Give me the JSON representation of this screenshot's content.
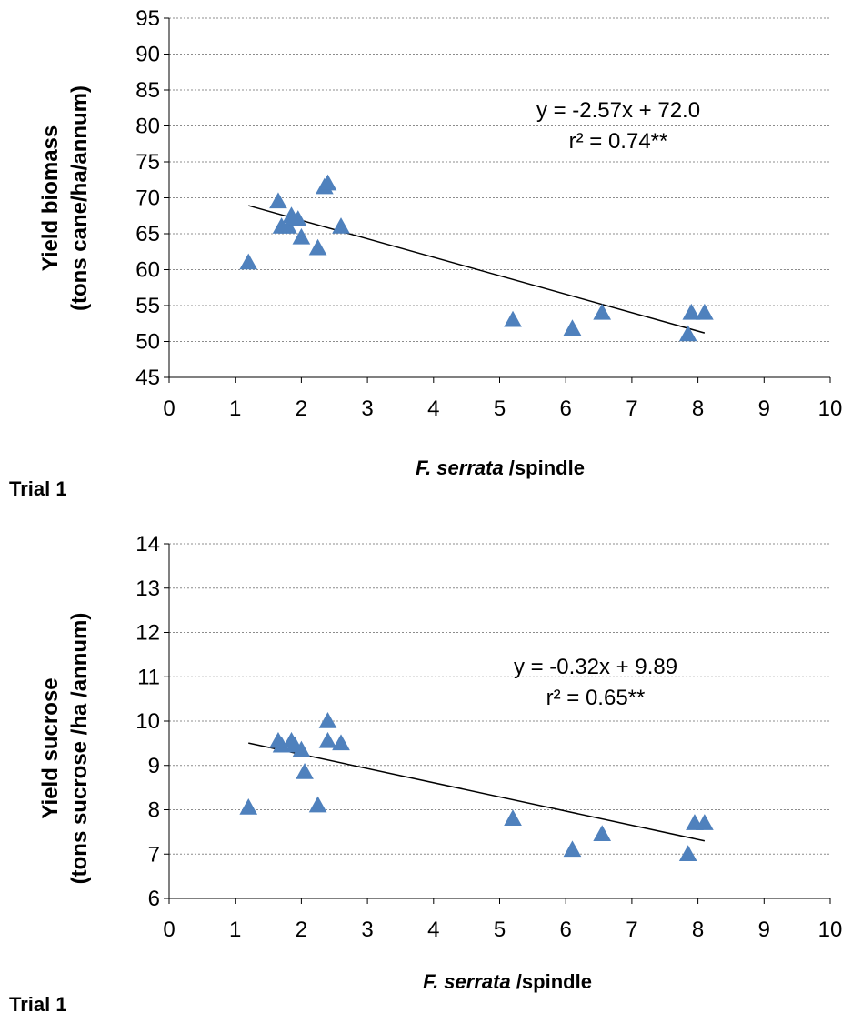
{
  "colors": {
    "marker": "#4F81BD",
    "grid": "#8c8c8c",
    "axis": "#000000",
    "trendline": "#000000"
  },
  "chart_data": [
    {
      "type": "scatter",
      "marker": "triangle",
      "panel_label": "Trial 1",
      "xlabel_italic": "F. serrata",
      "xlabel_rest": " /spindle",
      "ylabel_line1": "Yield biomass",
      "ylabel_line2": "(tons cane/ha/annum)",
      "xlim": [
        0,
        10
      ],
      "ylim": [
        45,
        95
      ],
      "x_ticks": [
        0,
        1,
        2,
        3,
        4,
        5,
        6,
        7,
        8,
        9,
        10
      ],
      "y_ticks": [
        45,
        50,
        55,
        60,
        65,
        70,
        75,
        80,
        85,
        90,
        95
      ],
      "grid": "horizontal dashed",
      "equation": "y = -2.57x + 72.0",
      "r2": "r² = 0.74**",
      "trendline": {
        "slope": -2.57,
        "intercept": 72.0,
        "x_range": [
          1.2,
          8.1
        ]
      },
      "points": [
        {
          "x": 1.2,
          "y": 61
        },
        {
          "x": 1.65,
          "y": 69.5
        },
        {
          "x": 1.7,
          "y": 66
        },
        {
          "x": 1.8,
          "y": 66
        },
        {
          "x": 1.85,
          "y": 67.5
        },
        {
          "x": 1.95,
          "y": 67
        },
        {
          "x": 2.0,
          "y": 64.5
        },
        {
          "x": 2.25,
          "y": 63
        },
        {
          "x": 2.35,
          "y": 71.5
        },
        {
          "x": 2.4,
          "y": 72
        },
        {
          "x": 2.6,
          "y": 66
        },
        {
          "x": 5.2,
          "y": 53
        },
        {
          "x": 6.1,
          "y": 51.8
        },
        {
          "x": 6.55,
          "y": 54
        },
        {
          "x": 7.85,
          "y": 51
        },
        {
          "x": 7.9,
          "y": 54
        },
        {
          "x": 8.1,
          "y": 54
        }
      ]
    },
    {
      "type": "scatter",
      "marker": "triangle",
      "panel_label": "Trial 1",
      "xlabel_italic": "F. serrata",
      "xlabel_rest": " /spindle",
      "ylabel_line1": "Yield sucrose",
      "ylabel_line2": "(tons sucrose /ha /annum)",
      "xlim": [
        0,
        10
      ],
      "ylim": [
        6,
        14
      ],
      "x_ticks": [
        0,
        1,
        2,
        3,
        4,
        5,
        6,
        7,
        8,
        9,
        10
      ],
      "y_ticks": [
        6,
        7,
        8,
        9,
        10,
        11,
        12,
        13,
        14
      ],
      "grid": "horizontal dashed",
      "equation": "y = -0.32x + 9.89",
      "r2": "r² = 0.65**",
      "trendline": {
        "slope": -0.32,
        "intercept": 9.89,
        "x_range": [
          1.2,
          8.1
        ]
      },
      "points": [
        {
          "x": 1.2,
          "y": 8.05
        },
        {
          "x": 1.65,
          "y": 9.55
        },
        {
          "x": 1.7,
          "y": 9.45
        },
        {
          "x": 1.85,
          "y": 9.55
        },
        {
          "x": 1.9,
          "y": 9.45
        },
        {
          "x": 2.0,
          "y": 9.35
        },
        {
          "x": 2.05,
          "y": 8.85
        },
        {
          "x": 2.25,
          "y": 8.1
        },
        {
          "x": 2.4,
          "y": 10.0
        },
        {
          "x": 2.4,
          "y": 9.55
        },
        {
          "x": 2.6,
          "y": 9.5
        },
        {
          "x": 5.2,
          "y": 7.8
        },
        {
          "x": 6.1,
          "y": 7.1
        },
        {
          "x": 6.55,
          "y": 7.45
        },
        {
          "x": 7.85,
          "y": 7.0
        },
        {
          "x": 7.95,
          "y": 7.7
        },
        {
          "x": 8.1,
          "y": 7.7
        }
      ]
    }
  ]
}
